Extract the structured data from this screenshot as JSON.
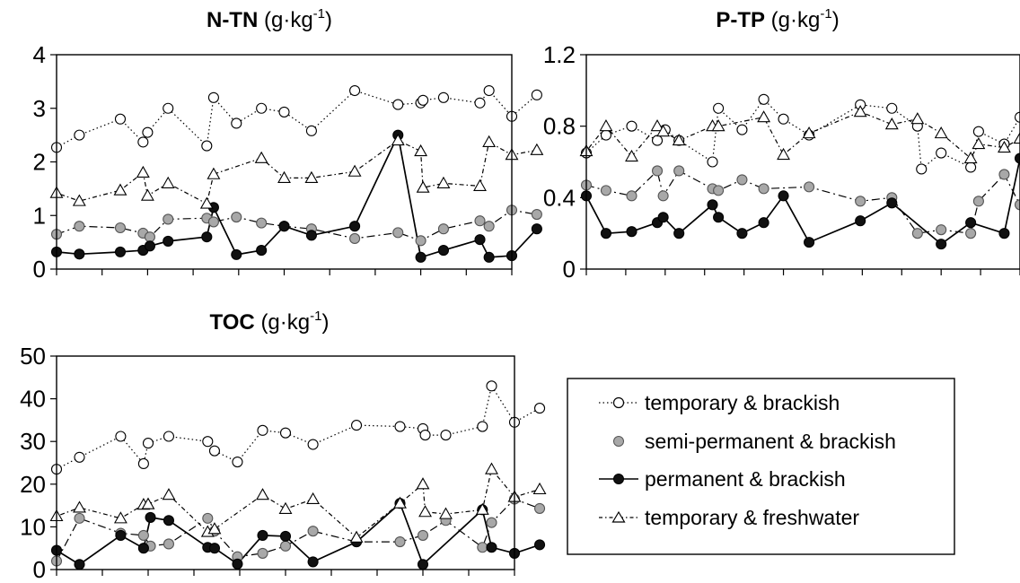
{
  "chart_data": [
    {
      "type": "line",
      "title_bold": "N-TN",
      "title_unit": "(g·kg",
      "title_sup": "-1",
      "title_close": ")",
      "ylim": [
        0,
        4
      ],
      "yticks": [
        0,
        1,
        2,
        3,
        4
      ],
      "ytick_labels": [
        "0",
        "1",
        "2",
        "3",
        "4"
      ],
      "x_categories": 10,
      "series": [
        {
          "key": "temp_brack",
          "points": [
            [
              0.0,
              2.27
            ],
            [
              0.5,
              2.5
            ],
            [
              1.4,
              2.8
            ],
            [
              1.9,
              2.37
            ],
            [
              2.0,
              2.55
            ],
            [
              2.45,
              3.0
            ],
            [
              3.3,
              2.3
            ],
            [
              3.45,
              3.2
            ],
            [
              3.95,
              2.72
            ],
            [
              4.5,
              3.0
            ],
            [
              5.0,
              2.93
            ],
            [
              5.6,
              2.58
            ],
            [
              6.55,
              3.33
            ],
            [
              7.5,
              3.07
            ],
            [
              8.0,
              3.1
            ],
            [
              8.05,
              3.15
            ],
            [
              8.5,
              3.2
            ],
            [
              9.3,
              3.1
            ],
            [
              9.5,
              3.33
            ],
            [
              10.0,
              2.85
            ],
            [
              10.55,
              3.25
            ]
          ]
        },
        {
          "key": "semi_brack",
          "points": [
            [
              0.0,
              0.65
            ],
            [
              0.5,
              0.8
            ],
            [
              1.4,
              0.77
            ],
            [
              1.9,
              0.67
            ],
            [
              2.05,
              0.6
            ],
            [
              2.45,
              0.93
            ],
            [
              3.3,
              0.95
            ],
            [
              3.45,
              0.88
            ],
            [
              3.95,
              0.97
            ],
            [
              4.5,
              0.86
            ],
            [
              5.0,
              0.8
            ],
            [
              5.6,
              0.75
            ],
            [
              6.55,
              0.57
            ],
            [
              7.5,
              0.68
            ],
            [
              8.0,
              0.53
            ],
            [
              8.5,
              0.75
            ],
            [
              9.3,
              0.9
            ],
            [
              9.5,
              0.8
            ],
            [
              10.0,
              1.1
            ],
            [
              10.55,
              1.02
            ]
          ]
        },
        {
          "key": "perm_brack",
          "points": [
            [
              0.0,
              0.32
            ],
            [
              0.5,
              0.28
            ],
            [
              1.4,
              0.32
            ],
            [
              1.9,
              0.35
            ],
            [
              2.05,
              0.43
            ],
            [
              2.45,
              0.52
            ],
            [
              3.3,
              0.6
            ],
            [
              3.45,
              1.15
            ],
            [
              3.95,
              0.27
            ],
            [
              4.5,
              0.35
            ],
            [
              5.0,
              0.8
            ],
            [
              5.6,
              0.63
            ],
            [
              6.55,
              0.8
            ],
            [
              7.5,
              2.5
            ],
            [
              8.0,
              0.22
            ],
            [
              8.5,
              0.35
            ],
            [
              9.3,
              0.55
            ],
            [
              9.5,
              0.22
            ],
            [
              10.0,
              0.25
            ],
            [
              10.55,
              0.75
            ]
          ]
        },
        {
          "key": "temp_fresh",
          "points": [
            [
              0.0,
              1.42
            ],
            [
              0.5,
              1.27
            ],
            [
              1.4,
              1.47
            ],
            [
              1.9,
              1.8
            ],
            [
              2.0,
              1.37
            ],
            [
              2.45,
              1.6
            ],
            [
              3.3,
              1.22
            ],
            [
              3.45,
              1.77
            ],
            [
              4.5,
              2.07
            ],
            [
              5.0,
              1.7
            ],
            [
              5.6,
              1.7
            ],
            [
              6.55,
              1.82
            ],
            [
              7.5,
              2.4
            ],
            [
              8.0,
              2.2
            ],
            [
              8.05,
              1.52
            ],
            [
              8.5,
              1.6
            ],
            [
              9.3,
              1.55
            ],
            [
              9.5,
              2.37
            ],
            [
              10.0,
              2.13
            ],
            [
              10.55,
              2.22
            ]
          ]
        }
      ]
    },
    {
      "type": "line",
      "title_bold": "P-TP",
      "title_unit": "(g·kg",
      "title_sup": "-1",
      "title_close": ")",
      "ylim": [
        0,
        1.2
      ],
      "yticks": [
        0,
        0.4,
        0.8,
        1.2
      ],
      "ytick_labels": [
        "0",
        "0.4",
        "0.8",
        "1.2"
      ],
      "x_categories": 11,
      "series": [
        {
          "key": "temp_brack",
          "points": [
            [
              0.0,
              0.65
            ],
            [
              0.5,
              0.75
            ],
            [
              1.15,
              0.8
            ],
            [
              1.8,
              0.72
            ],
            [
              2.0,
              0.78
            ],
            [
              2.35,
              0.72
            ],
            [
              3.2,
              0.6
            ],
            [
              3.35,
              0.9
            ],
            [
              3.95,
              0.78
            ],
            [
              4.5,
              0.95
            ],
            [
              5.0,
              0.84
            ],
            [
              5.65,
              0.75
            ],
            [
              6.95,
              0.92
            ],
            [
              7.75,
              0.9
            ],
            [
              8.4,
              0.8
            ],
            [
              8.5,
              0.56
            ],
            [
              9.0,
              0.65
            ],
            [
              9.75,
              0.57
            ],
            [
              9.95,
              0.77
            ],
            [
              10.6,
              0.7
            ],
            [
              11.0,
              0.85
            ]
          ]
        },
        {
          "key": "semi_brack",
          "points": [
            [
              0.0,
              0.47
            ],
            [
              0.5,
              0.44
            ],
            [
              1.15,
              0.41
            ],
            [
              1.8,
              0.55
            ],
            [
              1.95,
              0.41
            ],
            [
              2.35,
              0.55
            ],
            [
              3.2,
              0.45
            ],
            [
              3.35,
              0.44
            ],
            [
              3.95,
              0.5
            ],
            [
              4.5,
              0.45
            ],
            [
              5.65,
              0.46
            ],
            [
              6.95,
              0.38
            ],
            [
              7.75,
              0.4
            ],
            [
              8.4,
              0.2
            ],
            [
              9.0,
              0.22
            ],
            [
              9.75,
              0.2
            ],
            [
              9.95,
              0.38
            ],
            [
              10.6,
              0.53
            ],
            [
              11.0,
              0.36
            ]
          ]
        },
        {
          "key": "perm_brack",
          "points": [
            [
              0.0,
              0.41
            ],
            [
              0.5,
              0.2
            ],
            [
              1.15,
              0.21
            ],
            [
              1.8,
              0.26
            ],
            [
              1.95,
              0.29
            ],
            [
              2.35,
              0.2
            ],
            [
              3.2,
              0.36
            ],
            [
              3.35,
              0.29
            ],
            [
              3.95,
              0.2
            ],
            [
              4.5,
              0.26
            ],
            [
              5.0,
              0.41
            ],
            [
              5.65,
              0.15
            ],
            [
              6.95,
              0.27
            ],
            [
              7.75,
              0.37
            ],
            [
              9.0,
              0.14
            ],
            [
              9.75,
              0.26
            ],
            [
              10.6,
              0.2
            ],
            [
              11.0,
              0.62
            ]
          ]
        },
        {
          "key": "temp_fresh",
          "points": [
            [
              0.0,
              0.66
            ],
            [
              0.5,
              0.8
            ],
            [
              1.15,
              0.63
            ],
            [
              1.8,
              0.8
            ],
            [
              1.95,
              0.77
            ],
            [
              2.35,
              0.72
            ],
            [
              3.2,
              0.8
            ],
            [
              3.35,
              0.8
            ],
            [
              4.5,
              0.85
            ],
            [
              5.0,
              0.64
            ],
            [
              5.65,
              0.76
            ],
            [
              6.95,
              0.88
            ],
            [
              7.75,
              0.81
            ],
            [
              8.4,
              0.84
            ],
            [
              9.0,
              0.76
            ],
            [
              9.75,
              0.62
            ],
            [
              9.95,
              0.7
            ],
            [
              10.6,
              0.68
            ],
            [
              11.0,
              0.73
            ]
          ]
        }
      ]
    },
    {
      "type": "line",
      "title_bold": "TOC",
      "title_unit": "(g·kg",
      "title_sup": "-1",
      "title_close": ")",
      "ylim": [
        0,
        50
      ],
      "yticks": [
        0,
        10,
        20,
        30,
        40,
        50
      ],
      "ytick_labels": [
        "0",
        "10",
        "20",
        "30",
        "40",
        "50"
      ],
      "x_categories": 10,
      "series": [
        {
          "key": "temp_brack",
          "points": [
            [
              0.0,
              23.5
            ],
            [
              0.5,
              26.3
            ],
            [
              1.4,
              31.2
            ],
            [
              1.9,
              24.8
            ],
            [
              2.0,
              29.6
            ],
            [
              2.45,
              31.2
            ],
            [
              3.3,
              30.0
            ],
            [
              3.45,
              27.8
            ],
            [
              3.95,
              25.2
            ],
            [
              4.5,
              32.6
            ],
            [
              5.0,
              32.0
            ],
            [
              5.6,
              29.3
            ],
            [
              6.55,
              33.8
            ],
            [
              7.5,
              33.5
            ],
            [
              8.0,
              33.0
            ],
            [
              8.05,
              31.5
            ],
            [
              8.5,
              31.5
            ],
            [
              9.3,
              33.5
            ],
            [
              9.5,
              43.0
            ],
            [
              10.0,
              34.5
            ],
            [
              10.55,
              37.8
            ]
          ]
        },
        {
          "key": "semi_brack",
          "points": [
            [
              0.0,
              2.0
            ],
            [
              0.5,
              12.0
            ],
            [
              1.4,
              8.5
            ],
            [
              1.9,
              8.0
            ],
            [
              2.05,
              5.5
            ],
            [
              2.45,
              6.0
            ],
            [
              3.3,
              12.0
            ],
            [
              3.45,
              9.0
            ],
            [
              3.95,
              3.0
            ],
            [
              4.5,
              3.8
            ],
            [
              5.0,
              5.5
            ],
            [
              5.6,
              9.0
            ],
            [
              6.55,
              6.5
            ],
            [
              7.5,
              6.5
            ],
            [
              8.0,
              8.0
            ],
            [
              8.5,
              11.5
            ],
            [
              9.3,
              5.2
            ],
            [
              9.5,
              11.0
            ],
            [
              10.0,
              16.5
            ],
            [
              10.55,
              14.3
            ]
          ]
        },
        {
          "key": "perm_brack",
          "points": [
            [
              0.0,
              4.5
            ],
            [
              0.5,
              1.2
            ],
            [
              1.4,
              8.0
            ],
            [
              1.9,
              5.0
            ],
            [
              2.05,
              12.2
            ],
            [
              2.45,
              11.5
            ],
            [
              3.3,
              5.2
            ],
            [
              3.45,
              5.0
            ],
            [
              3.95,
              1.3
            ],
            [
              4.5,
              8.0
            ],
            [
              5.0,
              7.8
            ],
            [
              5.6,
              1.8
            ],
            [
              6.55,
              6.5
            ],
            [
              7.5,
              15.5
            ],
            [
              8.0,
              1.2
            ],
            [
              9.3,
              14.0
            ],
            [
              9.5,
              5.2
            ],
            [
              10.0,
              3.8
            ],
            [
              10.55,
              5.8
            ]
          ]
        },
        {
          "key": "temp_fresh",
          "points": [
            [
              0.0,
              12.5
            ],
            [
              0.5,
              14.5
            ],
            [
              1.4,
              12.0
            ],
            [
              1.9,
              15.2
            ],
            [
              2.0,
              15.3
            ],
            [
              2.45,
              17.5
            ],
            [
              3.3,
              8.8
            ],
            [
              3.45,
              9.5
            ],
            [
              4.5,
              17.5
            ],
            [
              5.0,
              14.2
            ],
            [
              5.6,
              16.5
            ],
            [
              6.55,
              7.5
            ],
            [
              7.5,
              15.5
            ],
            [
              8.0,
              20.0
            ],
            [
              8.05,
              13.5
            ],
            [
              8.5,
              13.0
            ],
            [
              9.3,
              14.0
            ],
            [
              9.5,
              23.5
            ],
            [
              10.0,
              17.0
            ],
            [
              10.55,
              18.8
            ]
          ]
        }
      ]
    }
  ],
  "legend": {
    "placement": "bottom-right",
    "entries": [
      {
        "key": "temp_brack",
        "label": "temporary & brackish",
        "marker": "circle-open",
        "line": "dotted"
      },
      {
        "key": "semi_brack",
        "label": "semi-permanent & brackish",
        "marker": "circle-gray",
        "line": "dash-dot"
      },
      {
        "key": "perm_brack",
        "label": "permanent & brackish",
        "marker": "circle-black",
        "line": "solid"
      },
      {
        "key": "temp_fresh",
        "label": "temporary & freshwater",
        "marker": "triangle-open",
        "line": "dotted"
      }
    ]
  },
  "colors": {
    "open_fill": "#ffffff",
    "gray_fill": "#a8a8a8",
    "black_fill": "#111111",
    "stroke": "#000000"
  }
}
